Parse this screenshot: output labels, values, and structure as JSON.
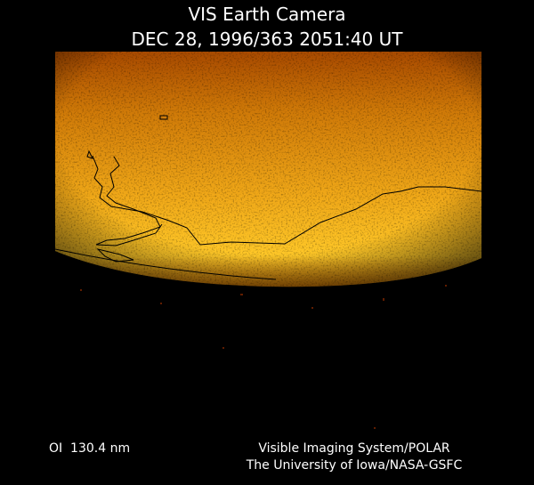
{
  "header": {
    "title": "VIS Earth Camera",
    "subtitle": "DEC 28, 1996/363 2051:40 UT"
  },
  "footer": {
    "filter": "OI  130.4 nm",
    "instrument": "Visible Imaging System/POLAR",
    "credit": "The University of Iowa/NASA-GSFC"
  }
}
